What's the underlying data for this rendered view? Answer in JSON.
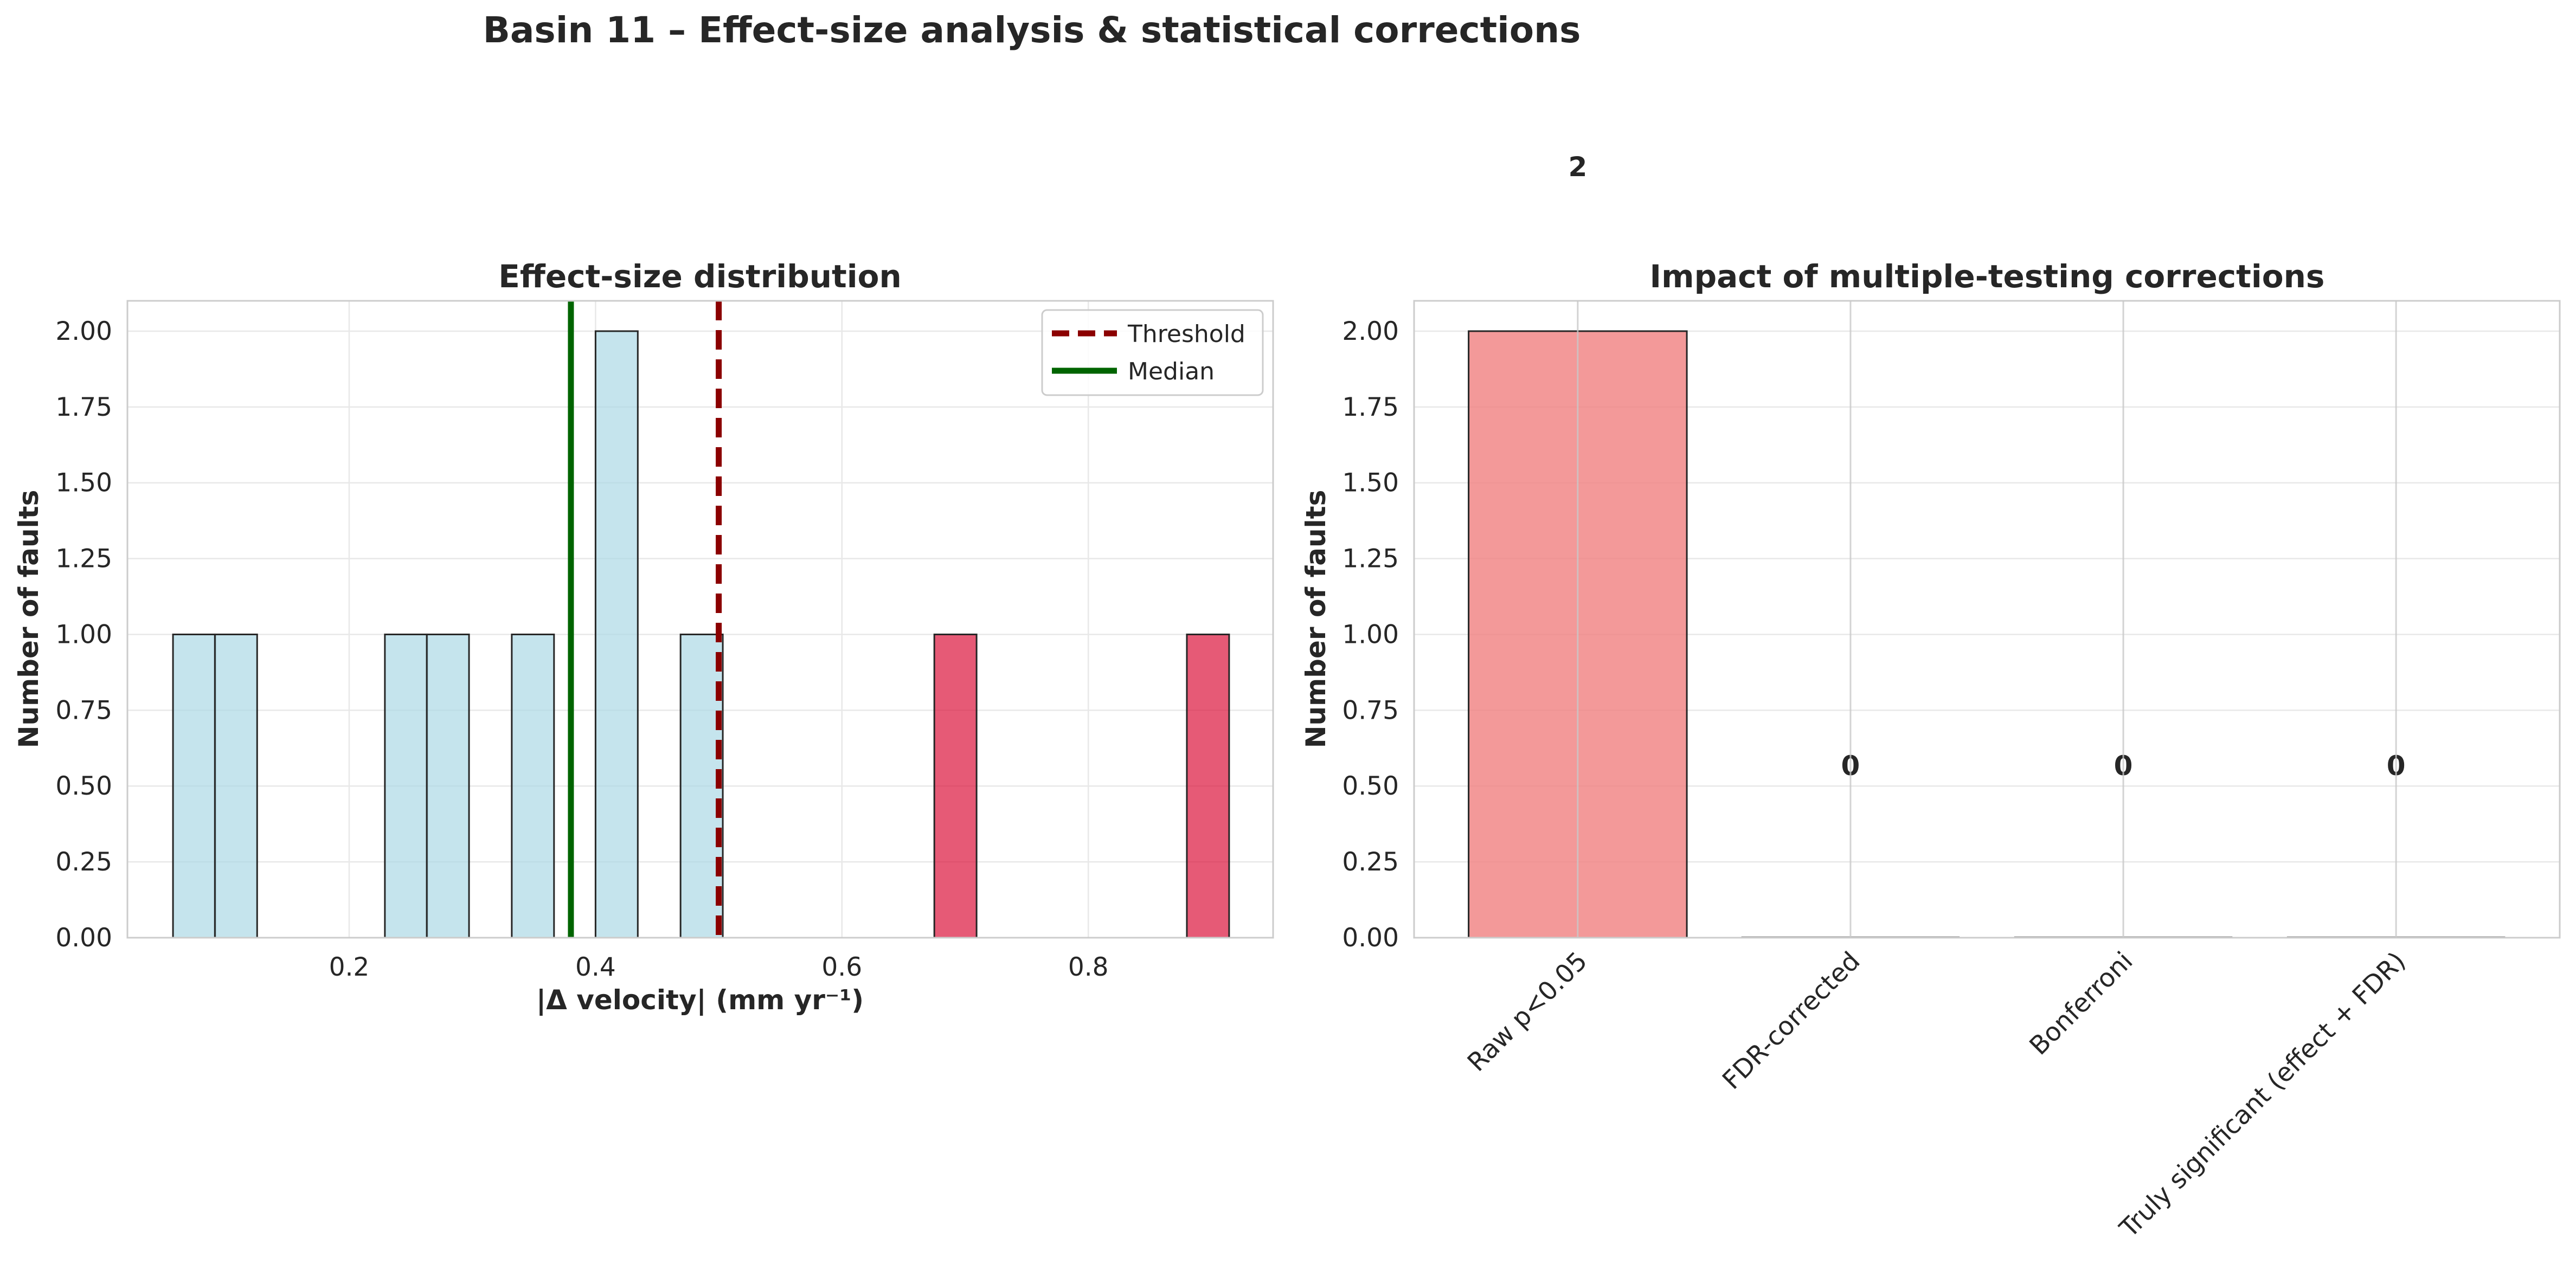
{
  "figure": {
    "suptitle": "Basin 11 – Effect-size analysis & statistical corrections"
  },
  "chart_data": [
    {
      "type": "bar",
      "subtype": "histogram",
      "title": "Effect-size distribution",
      "xlabel": "|Δ velocity| (mm yr⁻¹)",
      "ylabel": "Number of faults",
      "xlim": [
        0.02,
        0.95
      ],
      "ylim": [
        0,
        2.1
      ],
      "xticks": [
        "0.2",
        "0.4",
        "0.6",
        "0.8"
      ],
      "xtick_values": [
        0.2,
        0.4,
        0.6,
        0.8
      ],
      "yticks": [
        "0.00",
        "0.25",
        "0.50",
        "0.75",
        "1.00",
        "1.25",
        "1.50",
        "1.75",
        "2.00"
      ],
      "ytick_values": [
        0,
        0.25,
        0.5,
        0.75,
        1.0,
        1.25,
        1.5,
        1.75,
        2.0
      ],
      "grid": true,
      "bin_width": 0.0343,
      "bins": [
        {
          "x_start": 0.057,
          "count": 1,
          "group": "below"
        },
        {
          "x_start": 0.091,
          "count": 1,
          "group": "below"
        },
        {
          "x_start": 0.229,
          "count": 1,
          "group": "below"
        },
        {
          "x_start": 0.263,
          "count": 1,
          "group": "below"
        },
        {
          "x_start": 0.332,
          "count": 1,
          "group": "below"
        },
        {
          "x_start": 0.4,
          "count": 2,
          "group": "below"
        },
        {
          "x_start": 0.469,
          "count": 1,
          "group": "below"
        },
        {
          "x_start": 0.675,
          "count": 1,
          "group": "above"
        },
        {
          "x_start": 0.88,
          "count": 1,
          "group": "above"
        }
      ],
      "bin_colors": {
        "below": "#add8e6",
        "above": "#dc143c"
      },
      "reference_lines": [
        {
          "name": "Threshold",
          "x": 0.5,
          "color": "#8b0000",
          "style": "dashed"
        },
        {
          "name": "Median",
          "x": 0.38,
          "color": "#006400",
          "style": "solid"
        }
      ],
      "legend": {
        "position": "upper right",
        "entries": [
          "Threshold",
          "Median"
        ]
      }
    },
    {
      "type": "bar",
      "title": "Impact of multiple-testing corrections",
      "ylabel": "Number of faults",
      "categories": [
        "Raw p<0.05",
        "FDR-corrected",
        "Bonferroni",
        "Truly significant (effect + FDR)"
      ],
      "values": [
        2,
        0,
        0,
        0
      ],
      "value_labels": [
        "2",
        "0",
        "0",
        "0"
      ],
      "bar_color": "#f08080",
      "ylim": [
        0,
        2.1
      ],
      "yticks": [
        "0.00",
        "0.25",
        "0.50",
        "0.75",
        "1.00",
        "1.25",
        "1.50",
        "1.75",
        "2.00"
      ],
      "ytick_values": [
        0,
        0.25,
        0.5,
        0.75,
        1.0,
        1.25,
        1.5,
        1.75,
        2.0
      ],
      "grid": true
    }
  ]
}
